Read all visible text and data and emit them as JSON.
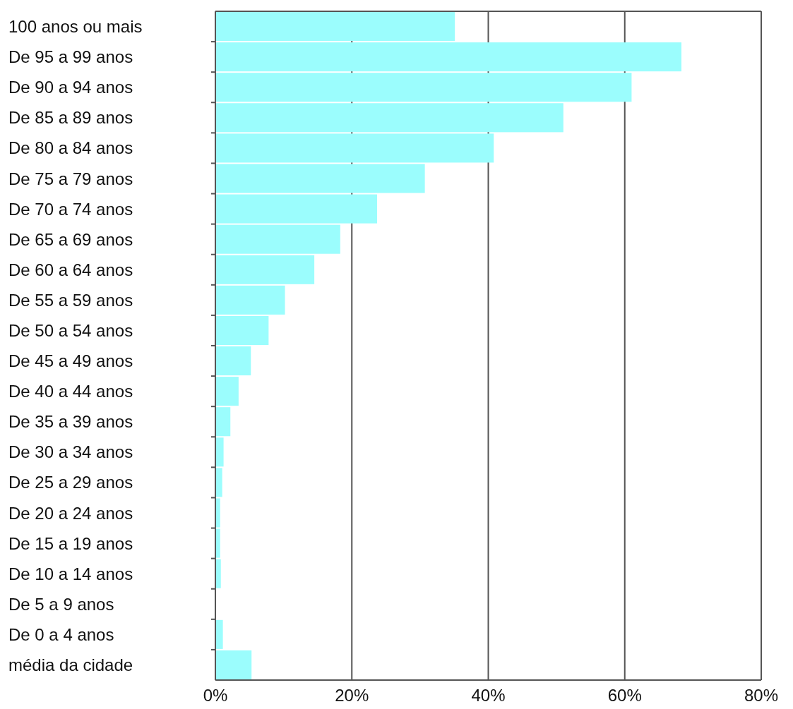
{
  "chart_data": {
    "type": "bar",
    "orientation": "horizontal",
    "categories": [
      "100 anos ou mais",
      "De 95 a 99 anos",
      "De 90 a 94 anos",
      "De 85 a 89 anos",
      "De 80 a 84 anos",
      "De 75 a 79 anos",
      "De 70 a 74 anos",
      "De 65 a 69 anos",
      "De 60 a 64 anos",
      "De 55 a 59 anos",
      "De 50 a 54 anos",
      "De 45 a 49 anos",
      "De 40 a 44 anos",
      "De 35 a 39 anos",
      "De 30 a 34 anos",
      "De 25 a 29 anos",
      "De 20 a 24 anos",
      "De 15 a 19 anos",
      "De 10 a 14 anos",
      "De 5 a 9 anos",
      "De 0 a 4 anos",
      "média da cidade"
    ],
    "values": [
      35.1,
      68.3,
      61.0,
      51.0,
      40.8,
      30.7,
      23.7,
      18.3,
      14.5,
      10.2,
      7.8,
      5.2,
      3.4,
      2.2,
      1.2,
      1.0,
      0.7,
      0.7,
      0.8,
      0,
      1.1,
      5.3
    ],
    "color": "#9bfdfd",
    "xlim": [
      0,
      80
    ],
    "xticks": [
      {
        "value": 0,
        "label": "0%"
      },
      {
        "value": 20,
        "label": "20%"
      },
      {
        "value": 40,
        "label": "40%"
      },
      {
        "value": 60,
        "label": "60%"
      },
      {
        "value": 80,
        "label": "80%"
      }
    ],
    "grid": "x"
  }
}
